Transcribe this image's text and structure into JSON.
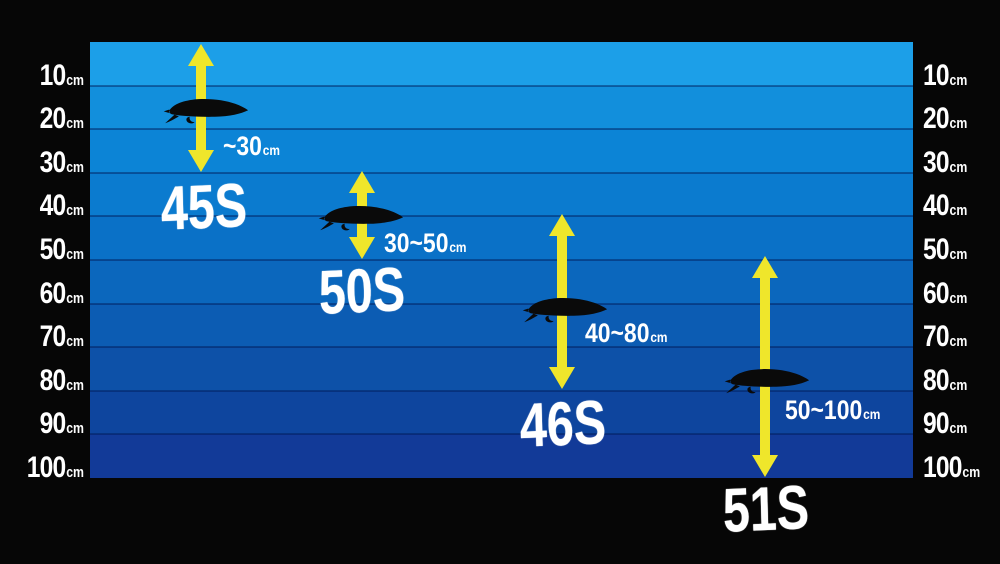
{
  "chart_data": {
    "type": "bar",
    "subtype": "vertical-depth-range-infographic",
    "unit": "cm",
    "axis": {
      "min": 0,
      "max": 100,
      "tick_step": 10,
      "tick_labels": [
        "10",
        "20",
        "30",
        "40",
        "50",
        "60",
        "70",
        "80",
        "90",
        "100"
      ],
      "tick_unit": "cm",
      "sides": [
        "left",
        "right"
      ],
      "grid": true
    },
    "items": [
      {
        "model": "45S",
        "depth_min": 0,
        "depth_max": 30,
        "range_label": "~30",
        "range_unit": "cm",
        "lure_depth": 15
      },
      {
        "model": "50S",
        "depth_min": 30,
        "depth_max": 50,
        "range_label": "30~50",
        "range_unit": "cm",
        "lure_depth": 40
      },
      {
        "model": "46S",
        "depth_min": 40,
        "depth_max": 80,
        "range_label": "40~80",
        "range_unit": "cm",
        "lure_depth": 60
      },
      {
        "model": "51S",
        "depth_min": 50,
        "depth_max": 100,
        "range_label": "50~100",
        "range_unit": "cm",
        "lure_depth": 75
      }
    ],
    "legend_position": "none",
    "colors": {
      "arrow_yellow": "#EFE62B",
      "text": "#FFFFFF",
      "lure_silhouette": "#0A0A0A",
      "background_black": "#060606",
      "gridline": "rgba(0,25,85,0.45)",
      "water_bands": [
        "#1C9FE8",
        "#128FDC",
        "#0C84D6",
        "#0B7BCF",
        "#0A71C7",
        "#0B67BD",
        "#0C5CB3",
        "#0D51A8",
        "#0E459E",
        "#123A98"
      ]
    }
  }
}
